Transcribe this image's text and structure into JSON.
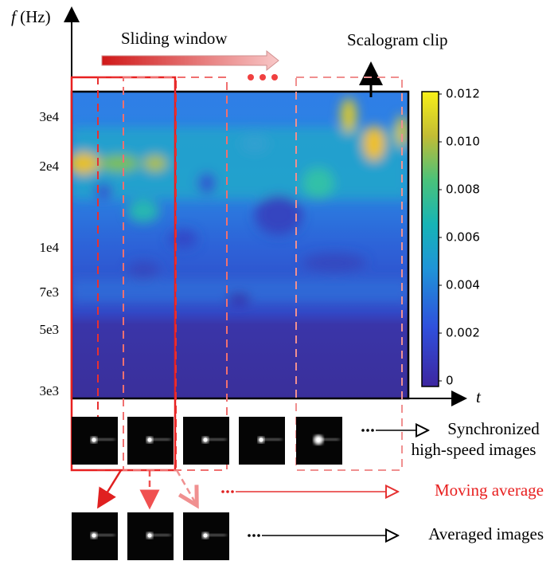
{
  "y_axis": {
    "symbol": "f",
    "unit": "(Hz)",
    "ticks": [
      "3e4",
      "2e4",
      "1e4",
      "7e3",
      "5e3",
      "3e3"
    ]
  },
  "x_axis": {
    "symbol": "t"
  },
  "labels": {
    "sliding_window": "Sliding window",
    "scalogram_clip": "Scalogram clip",
    "synchronized": [
      "Synchronized",
      "high-speed images"
    ],
    "moving_average": "Moving average",
    "averaged": "Averaged images"
  },
  "colorbar": {
    "ticks": [
      "0.012",
      "0.010",
      "0.008",
      "0.006",
      "0.004",
      "0.002",
      "0"
    ]
  }
}
